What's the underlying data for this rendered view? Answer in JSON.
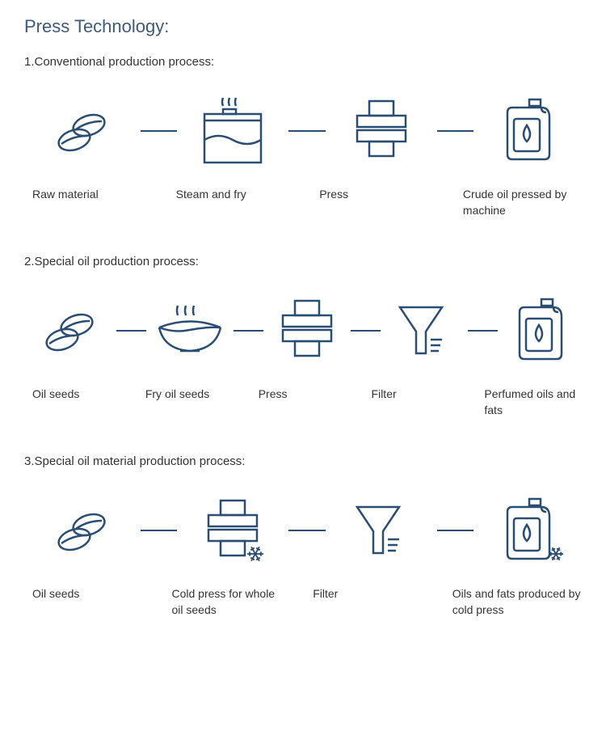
{
  "title": "Press Technology:",
  "stroke_color": "#2a4d73",
  "background_color": "#ffffff",
  "text_color": "#333333",
  "processes": [
    {
      "heading": "1.Conventional production process:",
      "steps": [
        {
          "icon": "seeds",
          "label": "Raw material"
        },
        {
          "icon": "pot",
          "label": "Steam and fry"
        },
        {
          "icon": "press",
          "label": "Press"
        },
        {
          "icon": "bottle",
          "label": "Crude oil pressed by machine"
        }
      ]
    },
    {
      "heading": "2.Special oil production process:",
      "steps": [
        {
          "icon": "seeds",
          "label": "Oil seeds"
        },
        {
          "icon": "bowl",
          "label": "Fry oil seeds"
        },
        {
          "icon": "press",
          "label": "Press"
        },
        {
          "icon": "filter",
          "label": "Filter"
        },
        {
          "icon": "bottle",
          "label": "Perfumed oils and fats"
        }
      ]
    },
    {
      "heading": "3.Special oil material production process:",
      "steps": [
        {
          "icon": "seeds",
          "label": "Oil seeds"
        },
        {
          "icon": "press_cold",
          "label": "Cold press for whole oil seeds"
        },
        {
          "icon": "filter",
          "label": "Filter"
        },
        {
          "icon": "bottle_cold",
          "label": "Oils and fats produced by cold press"
        }
      ]
    }
  ],
  "icon_size": 90,
  "stroke_width": 2.5,
  "connector_width": 50
}
